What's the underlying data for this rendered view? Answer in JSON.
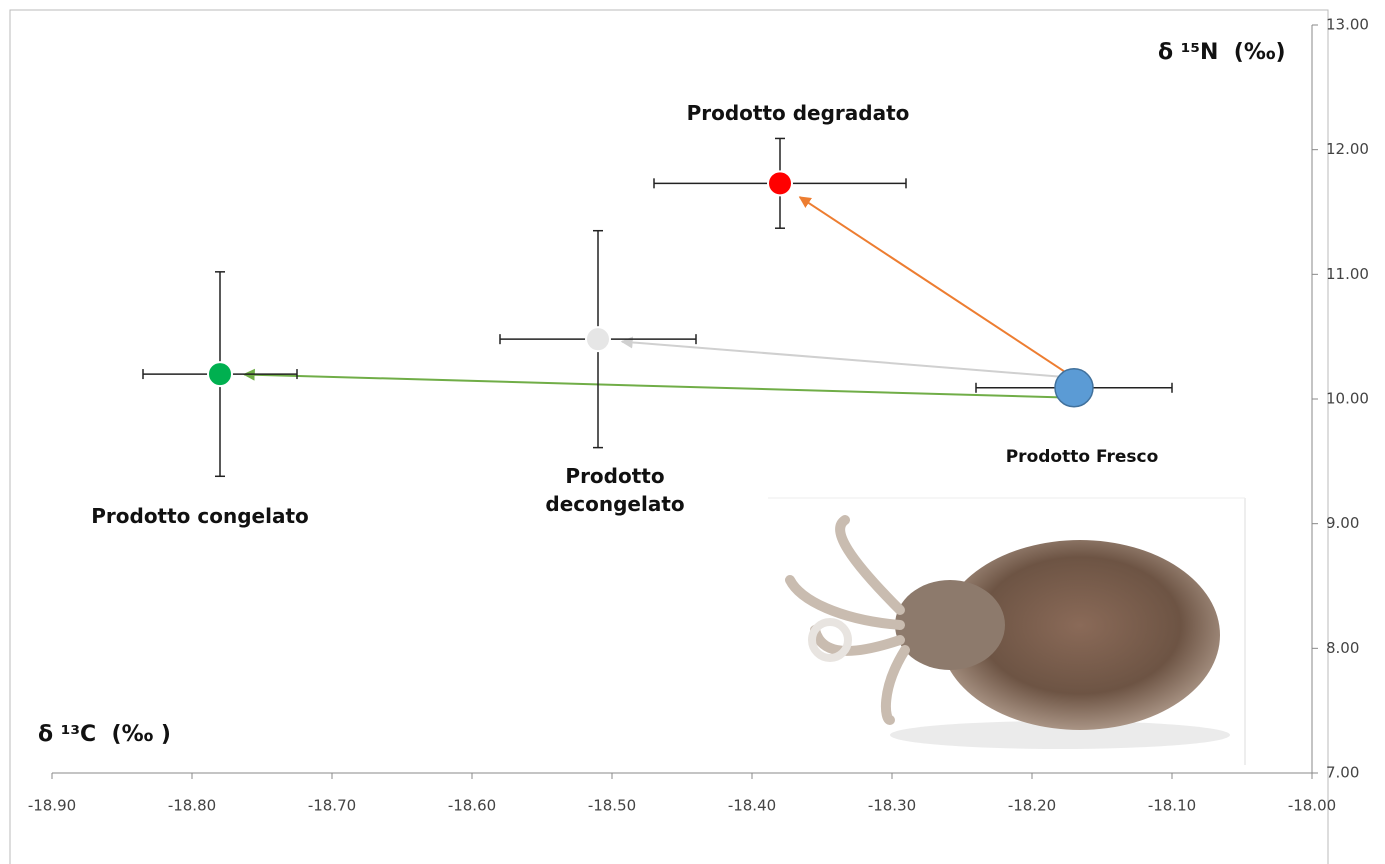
{
  "chart_data": {
    "type": "scatter",
    "x_label": "δ ¹³C  (‰ )",
    "y_label": "δ ¹⁵N  (‰)",
    "xlim": [
      -18.9,
      -18.0
    ],
    "ylim": [
      7.0,
      13.0
    ],
    "xticks": [
      {
        "value": -18.9,
        "label": "-18.90"
      },
      {
        "value": -18.8,
        "label": "-18.80"
      },
      {
        "value": -18.7,
        "label": "-18.70"
      },
      {
        "value": -18.6,
        "label": "-18.60"
      },
      {
        "value": -18.5,
        "label": "-18.50"
      },
      {
        "value": -18.4,
        "label": "-18.40"
      },
      {
        "value": -18.3,
        "label": "-18.30"
      },
      {
        "value": -18.2,
        "label": "-18.20"
      },
      {
        "value": -18.1,
        "label": "-18.10"
      },
      {
        "value": -18.0,
        "label": "-18.00"
      }
    ],
    "yticks": [
      {
        "value": 7,
        "label": "7.00"
      },
      {
        "value": 8,
        "label": "8.00"
      },
      {
        "value": 9,
        "label": "9.00"
      },
      {
        "value": 10,
        "label": "10.00"
      },
      {
        "value": 11,
        "label": "11.00"
      },
      {
        "value": 12,
        "label": "12.00"
      },
      {
        "value": 13,
        "label": "13.00"
      }
    ],
    "series": [
      {
        "name": "Prodotto Fresco",
        "color": "#5b9bd5",
        "x": [
          -18.17
        ],
        "values": [
          10.09
        ],
        "xerr": [
          0.07
        ],
        "yerr": [
          0
        ]
      },
      {
        "name": "Prodotto degradato",
        "color": "#ff0000",
        "arrow_color": "#ed7d31",
        "x": [
          -18.38
        ],
        "values": [
          11.73
        ],
        "xerr": [
          0.09
        ],
        "yerr": [
          0.36
        ]
      },
      {
        "name": "Prodotto\ndecongelato",
        "color": "#e6e6e6",
        "arrow_color": "#d0d0d0",
        "x": [
          -18.51
        ],
        "values": [
          10.48
        ],
        "xerr": [
          0.07
        ],
        "yerr": [
          0.87
        ]
      },
      {
        "name": "Prodotto congelato",
        "color": "#00b050",
        "arrow_color": "#70ad47",
        "x": [
          -18.78
        ],
        "values": [
          10.2
        ],
        "xerr": [
          0.055
        ],
        "yerr": [
          0.82
        ]
      }
    ]
  }
}
